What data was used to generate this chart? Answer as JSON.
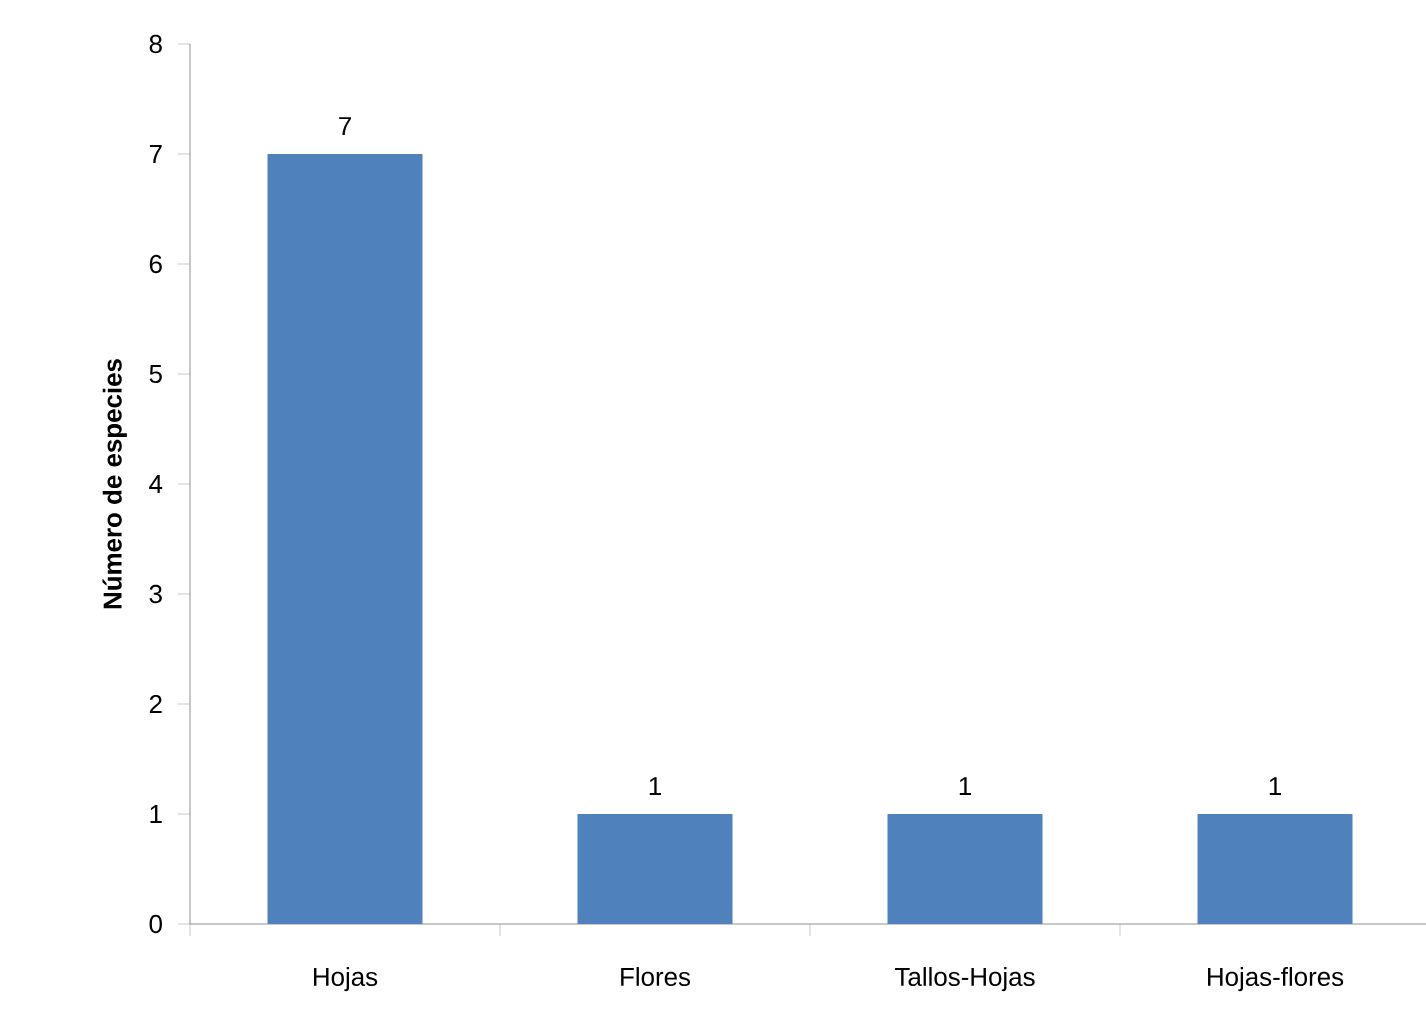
{
  "chart_data": {
    "type": "bar",
    "ylabel": "**Número de especies**",
    "categories": [
      "Hojas",
      "Flores",
      "Tallos-Hojas",
      "Hojas-flores"
    ],
    "values": [
      7,
      1,
      1,
      1
    ],
    "value_labels": [
      "7",
      "1",
      "1",
      "1"
    ],
    "color": "#4f81bd",
    "ylim": [
      0,
      8
    ],
    "yticks": [
      0,
      1,
      2,
      3,
      4,
      5,
      6,
      7,
      8
    ],
    "grid": false
  }
}
